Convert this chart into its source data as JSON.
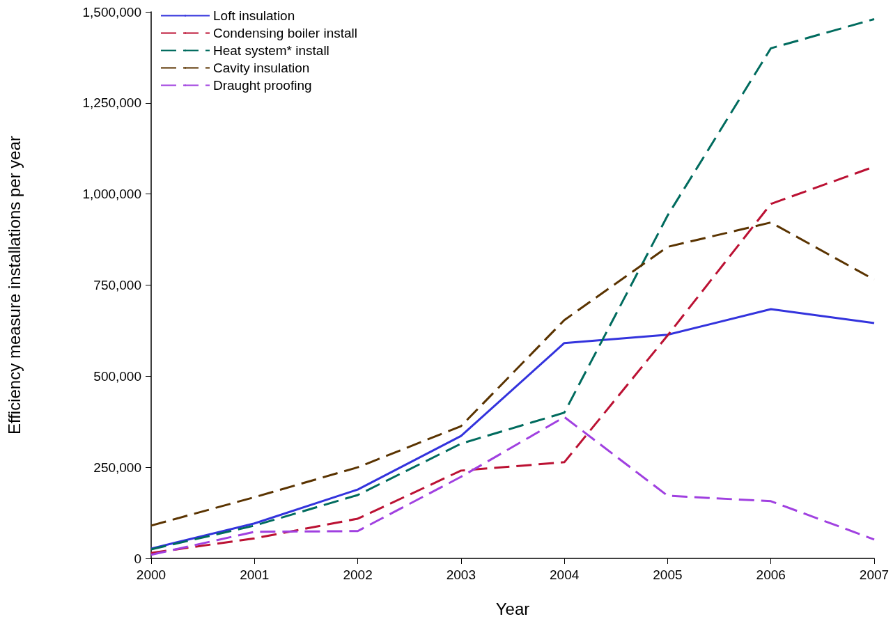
{
  "chart_data": {
    "type": "line",
    "xlabel": "Year",
    "ylabel": "Efficiency measure installations per year",
    "x": [
      2000,
      2001,
      2002,
      2003,
      2004,
      2005,
      2006,
      2007
    ],
    "xlim": [
      2000,
      2007
    ],
    "xticks": [
      2000,
      2001,
      2002,
      2003,
      2004,
      2005,
      2006,
      2007
    ],
    "ylim": [
      0,
      1500000
    ],
    "yticks": [
      0,
      {
        "value": 250000,
        "label": "250,000"
      },
      {
        "value": 500000,
        "label": "500,000"
      },
      {
        "value": 750000,
        "label": "750,000"
      },
      {
        "value": 1000000,
        "label": "1,000,000"
      },
      {
        "value": 1250000,
        "label": "1,250,000"
      },
      {
        "value": 1500000,
        "label": "1,500,000"
      }
    ],
    "grid": false,
    "legend": "top left",
    "marker": "none",
    "series": [
      {
        "name": "Loft insulation",
        "color": "#3333dd",
        "line_style": "solid",
        "values": [
          27000,
          96000,
          189000,
          336000,
          591000,
          614000,
          684000,
          646000
        ]
      },
      {
        "name": "Condensing boiler install",
        "color": "#bb1133",
        "line_style": "dashed",
        "values": [
          15000,
          55000,
          109000,
          241000,
          264000,
          612000,
          973000,
          1075000
        ]
      },
      {
        "name": "Heat system* install",
        "color": "#006b5e",
        "line_style": "dashed",
        "values": [
          25000,
          90000,
          174000,
          315000,
          400000,
          941000,
          1400000,
          1480000
        ]
      },
      {
        "name": "Cavity insulation",
        "color": "#5a3300",
        "line_style": "dashed",
        "values": [
          90000,
          168000,
          250000,
          363000,
          654000,
          855000,
          922000,
          765000
        ]
      },
      {
        "name": "Draught proofing",
        "color": "#a040e0",
        "line_style": "dashed",
        "values": [
          10000,
          73000,
          75000,
          224000,
          388000,
          172000,
          157000,
          52000
        ]
      }
    ]
  }
}
